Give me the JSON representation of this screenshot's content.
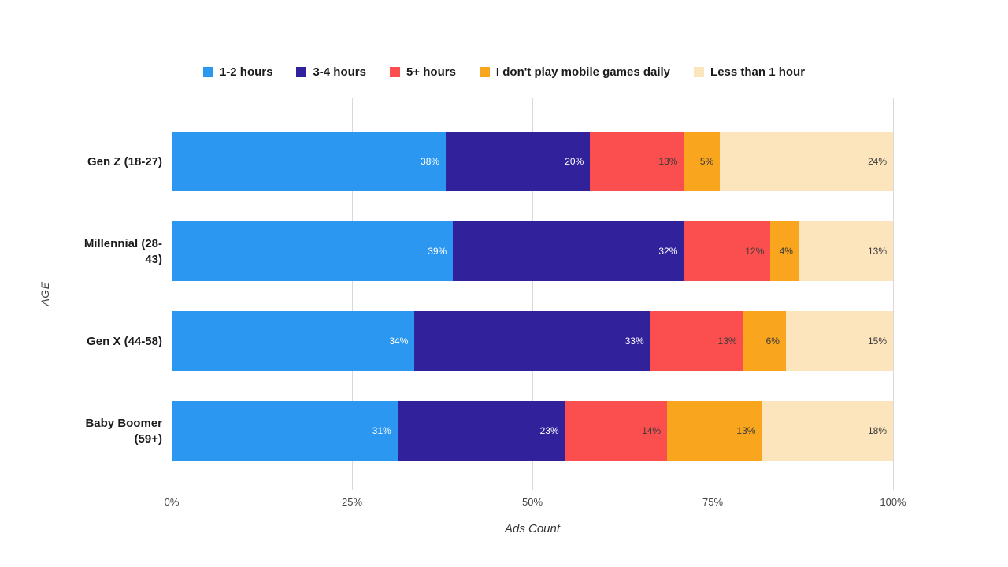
{
  "chart_data": {
    "type": "bar",
    "variant": "horizontal-100-stacked",
    "title": "",
    "xlabel": "Ads Count",
    "ylabel": "AGE",
    "x_ticks": [
      "0%",
      "25%",
      "50%",
      "75%",
      "100%"
    ],
    "xlim": [
      0,
      100
    ],
    "grid": "vertical-only",
    "legend_position": "top-center",
    "value_suffix": "%",
    "categories": [
      "Gen Z (18-27)",
      "Millennial (28-43)",
      "Gen X (44-58)",
      "Baby Boomer (59+)"
    ],
    "category_label_lines": [
      [
        "Gen Z (18-27)"
      ],
      [
        "Millennial (28-",
        "43)"
      ],
      [
        "Gen X (44-58)"
      ],
      [
        "Baby Boomer",
        "(59+)"
      ]
    ],
    "series": [
      {
        "name": "1-2 hours",
        "color": "#2B97F0",
        "label_color": "#ffffff",
        "values": [
          38,
          39,
          34,
          31
        ]
      },
      {
        "name": "3-4 hours",
        "color": "#31219B",
        "label_color": "#ffffff",
        "values": [
          20,
          32,
          33,
          23
        ]
      },
      {
        "name": "5+ hours",
        "color": "#FB4E4E",
        "label_color": "#3b3b3b",
        "values": [
          13,
          12,
          13,
          14
        ]
      },
      {
        "name": "I don't play mobile games daily",
        "color": "#F9A51D",
        "label_color": "#3b3b3b",
        "values": [
          5,
          4,
          6,
          13
        ]
      },
      {
        "name": "Less than 1 hour",
        "color": "#FCE5BD",
        "label_color": "#3b3b3b",
        "values": [
          24,
          13,
          15,
          18
        ]
      }
    ],
    "colors": {
      "gridline": "#d9d9d9",
      "axis_line": "#424242",
      "tick_text": "#444444",
      "label_text": "#1b1b1b"
    }
  }
}
